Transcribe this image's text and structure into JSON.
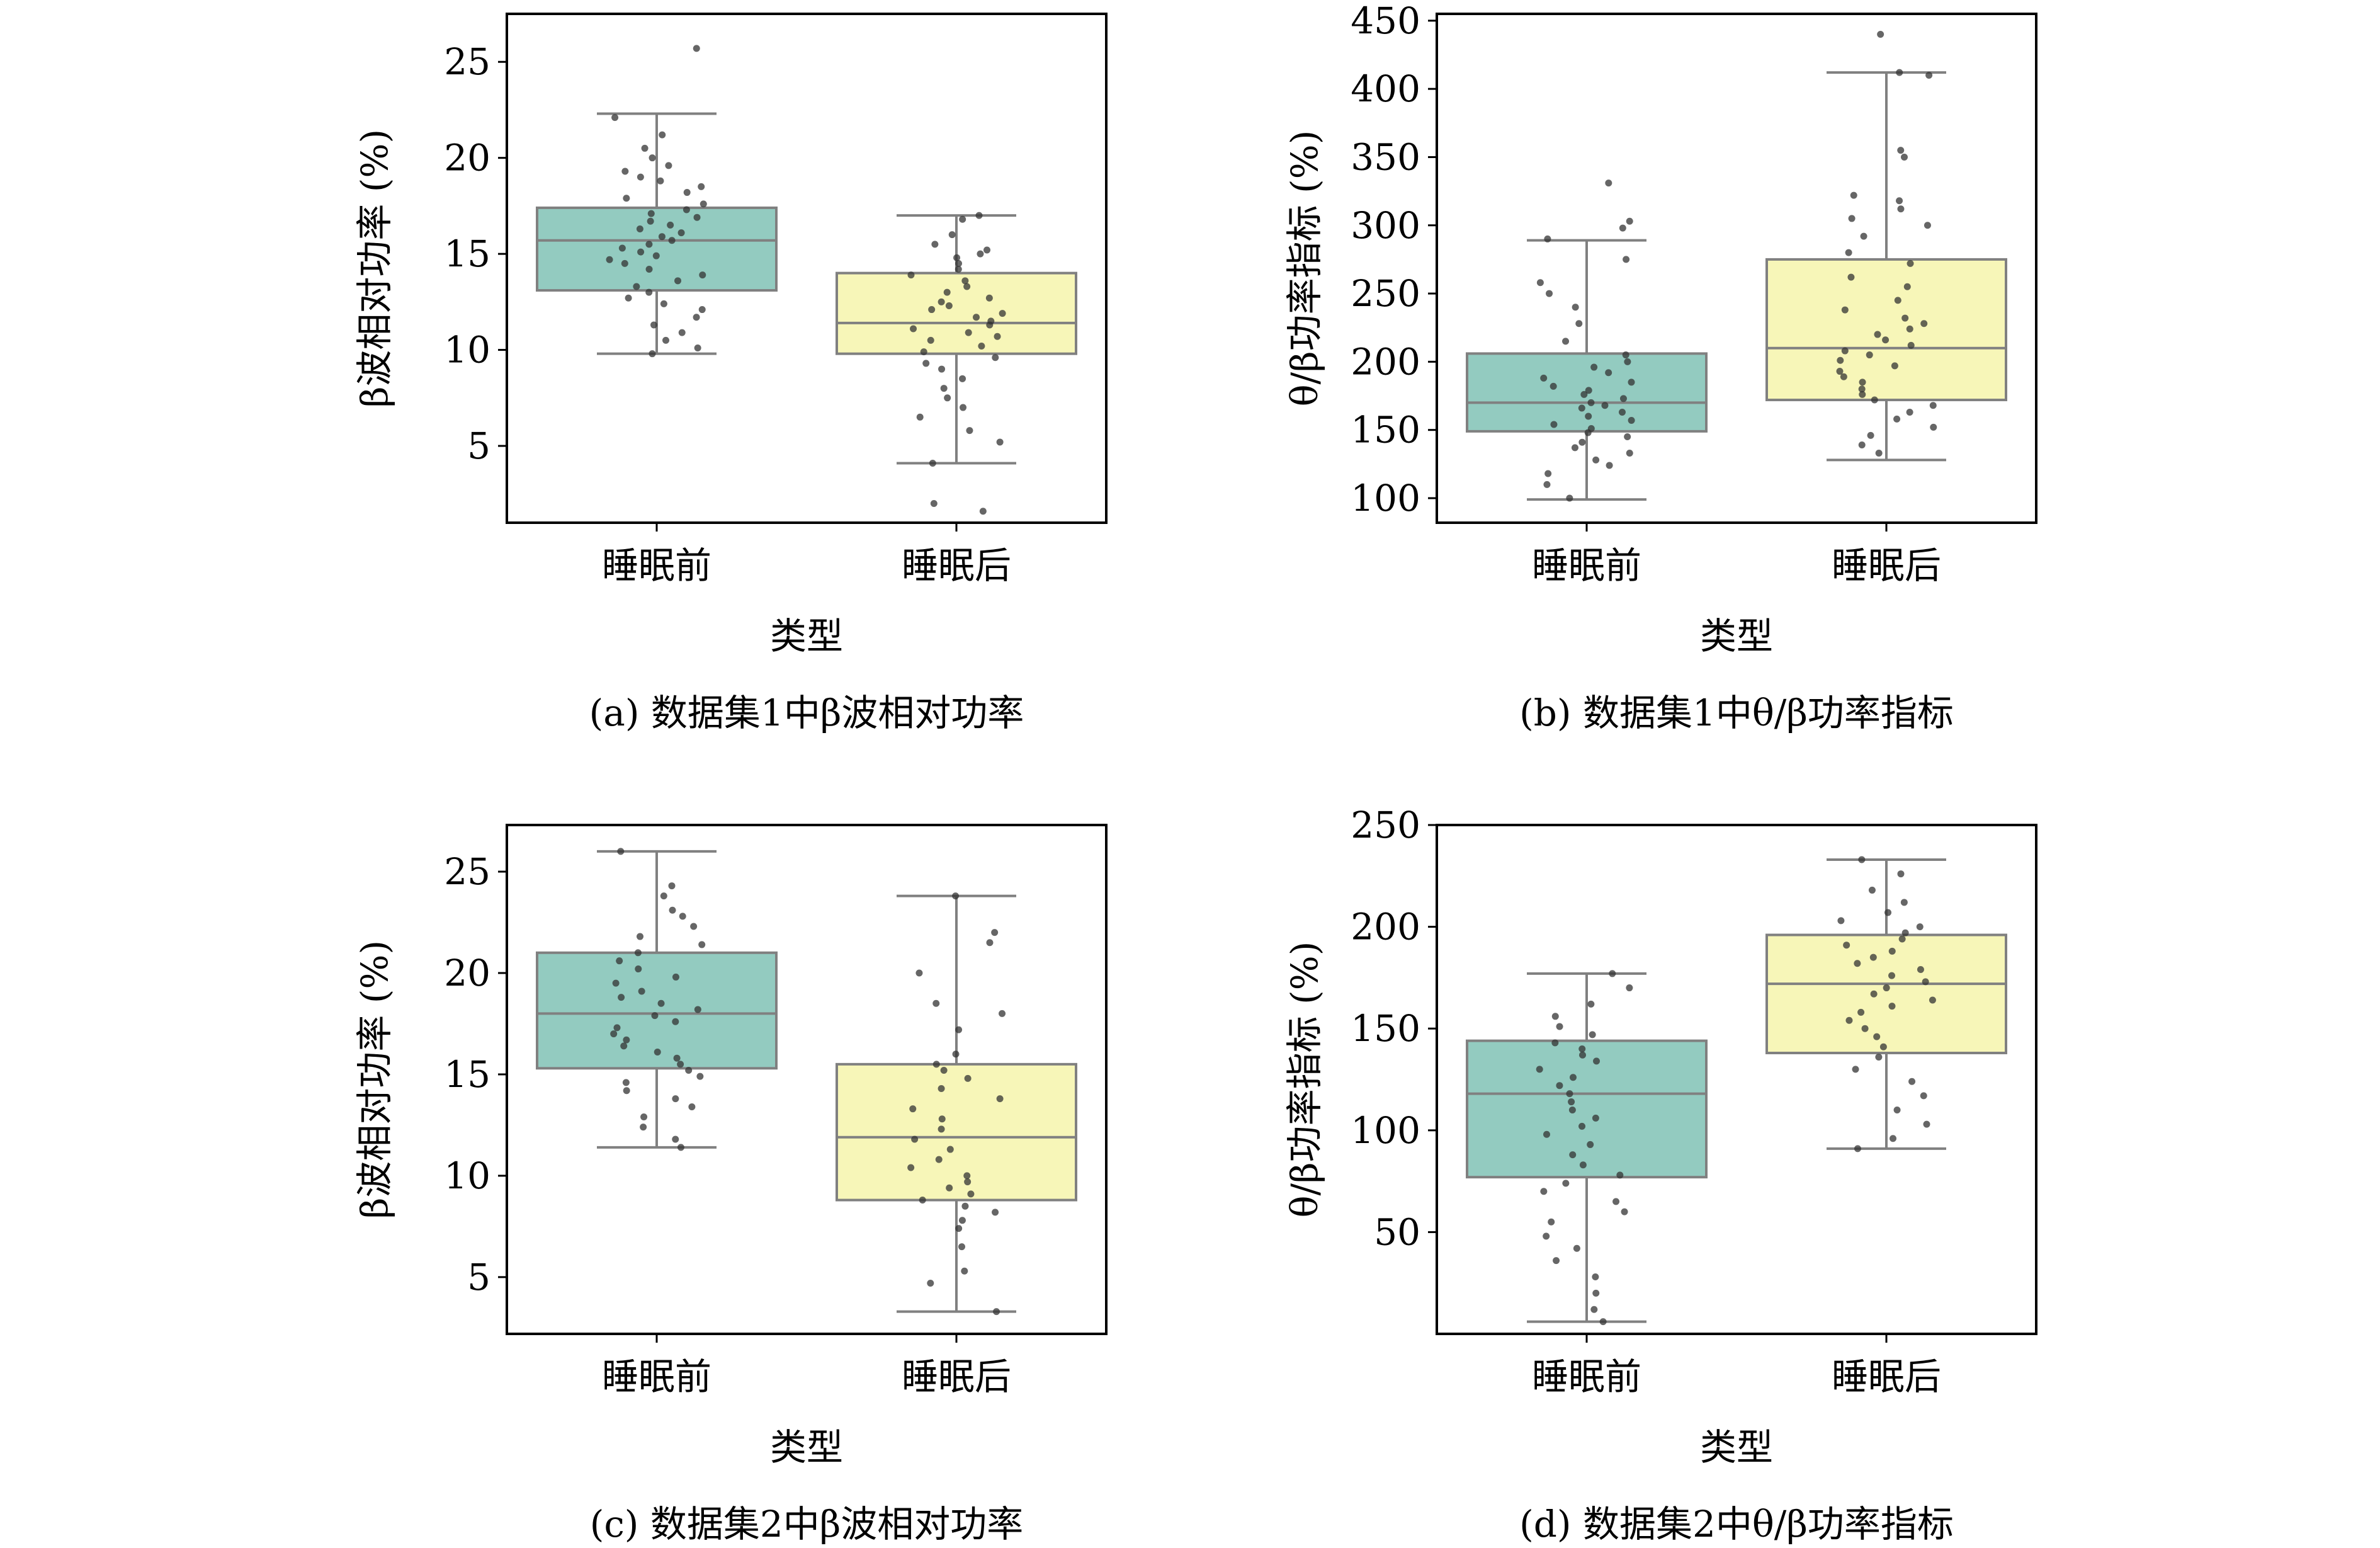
{
  "colors": {
    "before_fill": "#93cbc0",
    "after_fill": "#f7f6b8",
    "box_stroke": "#808080",
    "point": "#333333",
    "axis": "#000000"
  },
  "chart_data": [
    {
      "type": "box",
      "caption": "(a) 数据集1中β波相对功率",
      "xlabel": "类型",
      "ylabel": "β波相对功率 (%)",
      "ylim": [
        1,
        27.5
      ],
      "yticks": [
        5,
        10,
        15,
        20,
        25
      ],
      "grid": false,
      "categories": [
        "睡眠前",
        "睡眠后"
      ],
      "boxes": [
        {
          "whisker_low": 9.8,
          "q1": 13.1,
          "median": 15.7,
          "q3": 17.4,
          "whisker_high": 22.3,
          "points": [
            25.7,
            22.1,
            21.2,
            20.5,
            20.0,
            19.6,
            19.3,
            19.0,
            18.8,
            18.5,
            18.2,
            17.9,
            17.6,
            17.3,
            17.1,
            16.9,
            16.7,
            16.5,
            16.3,
            16.1,
            15.9,
            15.7,
            15.5,
            15.3,
            15.1,
            14.9,
            14.7,
            14.5,
            14.2,
            13.9,
            13.6,
            13.3,
            13.0,
            12.7,
            12.4,
            12.1,
            11.7,
            11.3,
            10.9,
            10.5,
            10.1,
            9.8
          ]
        },
        {
          "whisker_low": 4.1,
          "q1": 9.8,
          "median": 11.4,
          "q3": 14.0,
          "whisker_high": 17.0,
          "points": [
            17.0,
            16.8,
            16.0,
            15.5,
            15.2,
            15.0,
            14.8,
            14.5,
            14.2,
            13.9,
            13.6,
            13.3,
            13.0,
            12.7,
            12.5,
            12.3,
            12.1,
            11.9,
            11.7,
            11.5,
            11.3,
            11.1,
            10.9,
            10.7,
            10.5,
            10.2,
            9.9,
            9.6,
            9.3,
            9.0,
            8.5,
            8.0,
            7.5,
            7.0,
            6.5,
            5.8,
            5.2,
            4.1,
            2.0,
            1.6
          ]
        }
      ]
    },
    {
      "type": "box",
      "caption": "(b) 数据集1中θ/β功率指标",
      "xlabel": "类型",
      "ylabel": "θ/β功率指标 (%)",
      "ylim": [
        82,
        455
      ],
      "yticks": [
        100,
        150,
        200,
        250,
        300,
        350,
        400,
        450
      ],
      "grid": false,
      "categories": [
        "睡眠前",
        "睡眠后"
      ],
      "boxes": [
        {
          "whisker_low": 99,
          "q1": 149,
          "median": 170,
          "q3": 206,
          "whisker_high": 289,
          "points": [
            331,
            303,
            298,
            290,
            275,
            258,
            250,
            240,
            228,
            215,
            205,
            200,
            196,
            192,
            188,
            185,
            182,
            179,
            176,
            173,
            170,
            168,
            166,
            163,
            160,
            157,
            154,
            151,
            148,
            145,
            141,
            137,
            133,
            128,
            124,
            118,
            110,
            100
          ]
        },
        {
          "whisker_low": 128,
          "q1": 172,
          "median": 210,
          "q3": 275,
          "whisker_high": 412,
          "points": [
            440,
            412,
            410,
            355,
            350,
            322,
            318,
            312,
            305,
            300,
            292,
            280,
            272,
            262,
            255,
            245,
            238,
            232,
            228,
            224,
            220,
            216,
            212,
            208,
            205,
            201,
            197,
            193,
            189,
            185,
            180,
            176,
            172,
            168,
            163,
            158,
            152,
            146,
            139,
            133
          ]
        }
      ]
    },
    {
      "type": "box",
      "caption": "(c) 数据集2中β波相对功率",
      "xlabel": "类型",
      "ylabel": "β波相对功率 (%)",
      "ylim": [
        2.2,
        27.3
      ],
      "yticks": [
        5,
        10,
        15,
        20,
        25
      ],
      "grid": false,
      "categories": [
        "睡眠前",
        "睡眠后"
      ],
      "boxes": [
        {
          "whisker_low": 11.4,
          "q1": 15.3,
          "median": 18.0,
          "q3": 21.0,
          "whisker_high": 26.0,
          "points": [
            26.0,
            24.3,
            23.8,
            23.1,
            22.8,
            22.3,
            21.8,
            21.4,
            21.0,
            20.6,
            20.2,
            19.8,
            19.5,
            19.1,
            18.8,
            18.5,
            18.2,
            17.9,
            17.6,
            17.3,
            17.0,
            16.7,
            16.4,
            16.1,
            15.8,
            15.5,
            15.2,
            14.9,
            14.6,
            14.2,
            13.8,
            13.4,
            12.9,
            12.4,
            11.8,
            11.4
          ]
        },
        {
          "whisker_low": 3.3,
          "q1": 8.8,
          "median": 11.9,
          "q3": 15.5,
          "whisker_high": 23.8,
          "points": [
            23.8,
            22.0,
            21.5,
            20.0,
            18.5,
            18.0,
            17.2,
            16.0,
            15.5,
            15.2,
            14.8,
            14.3,
            13.8,
            13.3,
            12.8,
            12.3,
            11.8,
            11.3,
            10.8,
            10.4,
            10.0,
            9.7,
            9.4,
            9.1,
            8.8,
            8.5,
            8.2,
            7.8,
            7.4,
            6.5,
            5.3,
            4.7,
            3.3
          ]
        }
      ]
    },
    {
      "type": "box",
      "caption": "(d) 数据集2中θ/β功率指标",
      "xlabel": "类型",
      "ylabel": "θ/β功率指标 (%)",
      "ylim": [
        0,
        250
      ],
      "yticks": [
        50,
        100,
        150,
        200,
        250
      ],
      "grid": false,
      "categories": [
        "睡眠前",
        "睡眠后"
      ],
      "boxes": [
        {
          "whisker_low": 6,
          "q1": 77,
          "median": 118,
          "q3": 144,
          "whisker_high": 177,
          "points": [
            177,
            170,
            162,
            156,
            151,
            147,
            143,
            140,
            137,
            134,
            130,
            126,
            122,
            118,
            114,
            110,
            106,
            102,
            98,
            93,
            88,
            83,
            78,
            74,
            70,
            65,
            60,
            55,
            48,
            42,
            36,
            28,
            20,
            12,
            6
          ]
        },
        {
          "whisker_low": 91,
          "q1": 138,
          "median": 172,
          "q3": 196,
          "whisker_high": 233,
          "points": [
            233,
            226,
            218,
            212,
            207,
            203,
            200,
            197,
            194,
            191,
            188,
            185,
            182,
            179,
            176,
            173,
            170,
            167,
            164,
            161,
            158,
            154,
            150,
            146,
            141,
            136,
            130,
            124,
            117,
            110,
            103,
            96,
            91
          ]
        }
      ]
    }
  ]
}
